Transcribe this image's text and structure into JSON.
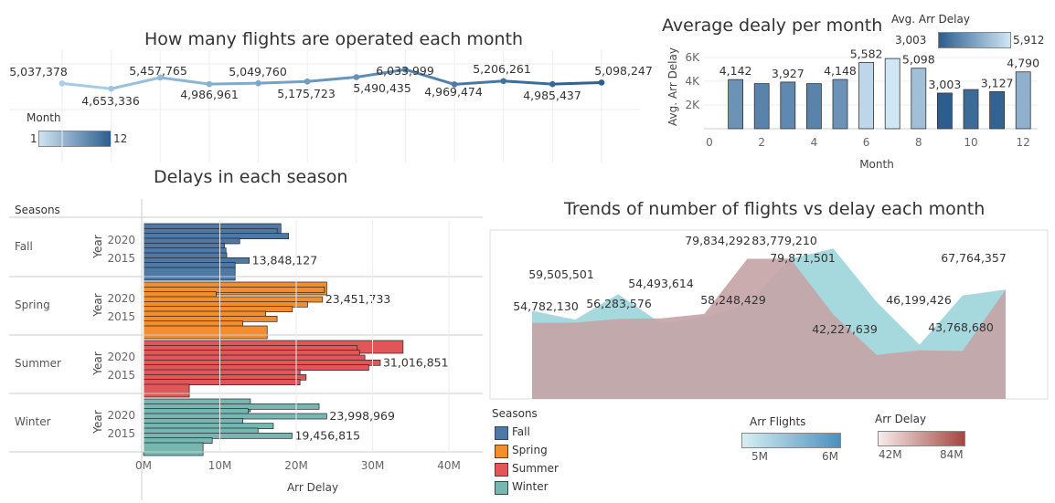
{
  "chart_data": [
    {
      "type": "line",
      "title": "How many flights are operated each month",
      "x": [
        1,
        2,
        3,
        4,
        5,
        6,
        7,
        8,
        9,
        10,
        11,
        12
      ],
      "values": [
        5037378,
        4653336,
        5457765,
        4986961,
        5049760,
        5175723,
        5490435,
        6033999,
        4969474,
        5206261,
        4985437,
        5098247
      ],
      "labels": [
        "5,037,378",
        "4,653,336",
        "5,457,765",
        "4,986,961",
        "5,049,760",
        "5,175,723",
        "5,490,435",
        "6,033,999",
        "4,969,474",
        "5,206,261",
        "4,985,437",
        "5,098,247"
      ],
      "legend": {
        "title": "Month",
        "min": "1",
        "max": "12"
      },
      "colors": {
        "low": "#a9cfea",
        "high": "#2c5d8e"
      }
    },
    {
      "type": "bar",
      "title": "Average dealy per month",
      "xlabel": "Month",
      "ylabel": "Avg. Arr Delay",
      "x": [
        1,
        2,
        3,
        4,
        5,
        6,
        7,
        8,
        9,
        10,
        11,
        12
      ],
      "values": [
        4142,
        3800,
        3927,
        3800,
        4148,
        5582,
        5912,
        5098,
        3003,
        3300,
        3127,
        4790
      ],
      "data_labels": [
        {
          "month": 1,
          "text": "4,142"
        },
        {
          "month": 3,
          "text": "3,927"
        },
        {
          "month": 5,
          "text": "4,148"
        },
        {
          "month": 6,
          "text": "5,582"
        },
        {
          "month": 8,
          "text": "5,098"
        },
        {
          "month": 9,
          "text": "3,003"
        },
        {
          "month": 11,
          "text": "3,127"
        },
        {
          "month": 12,
          "text": "4,790"
        }
      ],
      "xticks": [
        "0",
        "2",
        "4",
        "6",
        "8",
        "10",
        "12"
      ],
      "yticks": [
        "2K",
        "4K",
        "6K"
      ],
      "legend": {
        "title": "Avg. Arr Delay",
        "min": "3,003",
        "max": "5,912"
      },
      "colors": {
        "low": "#2c5d8e",
        "high": "#cfe6f5"
      }
    },
    {
      "type": "bar",
      "title": "Delays in each season",
      "xlabel": "Arr Delay",
      "header": "Seasons",
      "year_axis_label": "Year",
      "year_labels": [
        "2020",
        "2015"
      ],
      "xticks": [
        "0M",
        "10M",
        "20M",
        "30M",
        "40M"
      ],
      "series": [
        {
          "name": "Fall",
          "color": "#4e79a7",
          "values": [
            18000000,
            17500000,
            19000000,
            12600000,
            10600000,
            10800000,
            10900000,
            13848127,
            12000000,
            12000000
          ],
          "label": "13,848,127",
          "label_index": 7
        },
        {
          "name": "Spring",
          "color": "#f28e2b",
          "values": [
            24000000,
            23700000,
            9500000,
            23451733,
            21500000,
            19500000,
            16000000,
            17500000,
            13000000,
            16200000
          ],
          "label": "23,451,733",
          "label_index": 3
        },
        {
          "name": "Summer",
          "color": "#e15759",
          "values": [
            34000000,
            28000000,
            28300000,
            29000000,
            31016851,
            29500000,
            20500000,
            21300000,
            20500000,
            6000000
          ],
          "label": "31,016,851",
          "label_index": 4
        },
        {
          "name": "Winter",
          "color": "#76b7b2",
          "values": [
            14000000,
            23000000,
            13700000,
            23998969,
            13000000,
            17000000,
            15000000,
            19456815,
            9000000,
            7800000
          ],
          "label": "23,998,969",
          "label_index": 3,
          "label2": "19,456,815",
          "label2_index": 7
        }
      ]
    },
    {
      "type": "area",
      "title": "Trends of number of flights vs delay each month",
      "x": [
        1,
        2,
        3,
        4,
        5,
        6,
        7,
        8,
        9,
        10,
        11,
        12
      ],
      "flights": [
        59505501,
        56000000,
        66000000,
        54493614,
        57000000,
        62000000,
        79871501,
        83779210,
        63000000,
        46199426,
        65500000,
        67764357
      ],
      "delay": [
        54782130,
        54800000,
        56283576,
        56500000,
        58248429,
        79834292,
        79871501,
        58000000,
        42227639,
        44000000,
        43768680,
        67764357
      ],
      "annotations": [
        {
          "text": "59,505,501"
        },
        {
          "text": "54,782,130"
        },
        {
          "text": "56,283,576"
        },
        {
          "text": "54,493,614"
        },
        {
          "text": "58,248,429"
        },
        {
          "text": "79,834,292"
        },
        {
          "text": "83,779,210"
        },
        {
          "text": "79,871,501"
        },
        {
          "text": "42,227,639"
        },
        {
          "text": "46,199,426"
        },
        {
          "text": "43,768,680"
        },
        {
          "text": "67,764,357"
        }
      ],
      "legend_flights": {
        "title": "Arr Flights",
        "min": "5M",
        "max": "6M"
      },
      "legend_delay": {
        "title": "Arr Delay",
        "min": "42M",
        "max": "84M"
      },
      "colors": {
        "flights": "#8fcfd6",
        "delay": "#c4a3a6"
      }
    }
  ],
  "seasons_legend": {
    "title": "Seasons",
    "items": [
      {
        "name": "Fall",
        "color": "#4e79a7"
      },
      {
        "name": "Spring",
        "color": "#f28e2b"
      },
      {
        "name": "Summer",
        "color": "#e15759"
      },
      {
        "name": "Winter",
        "color": "#76b7b2"
      }
    ]
  }
}
